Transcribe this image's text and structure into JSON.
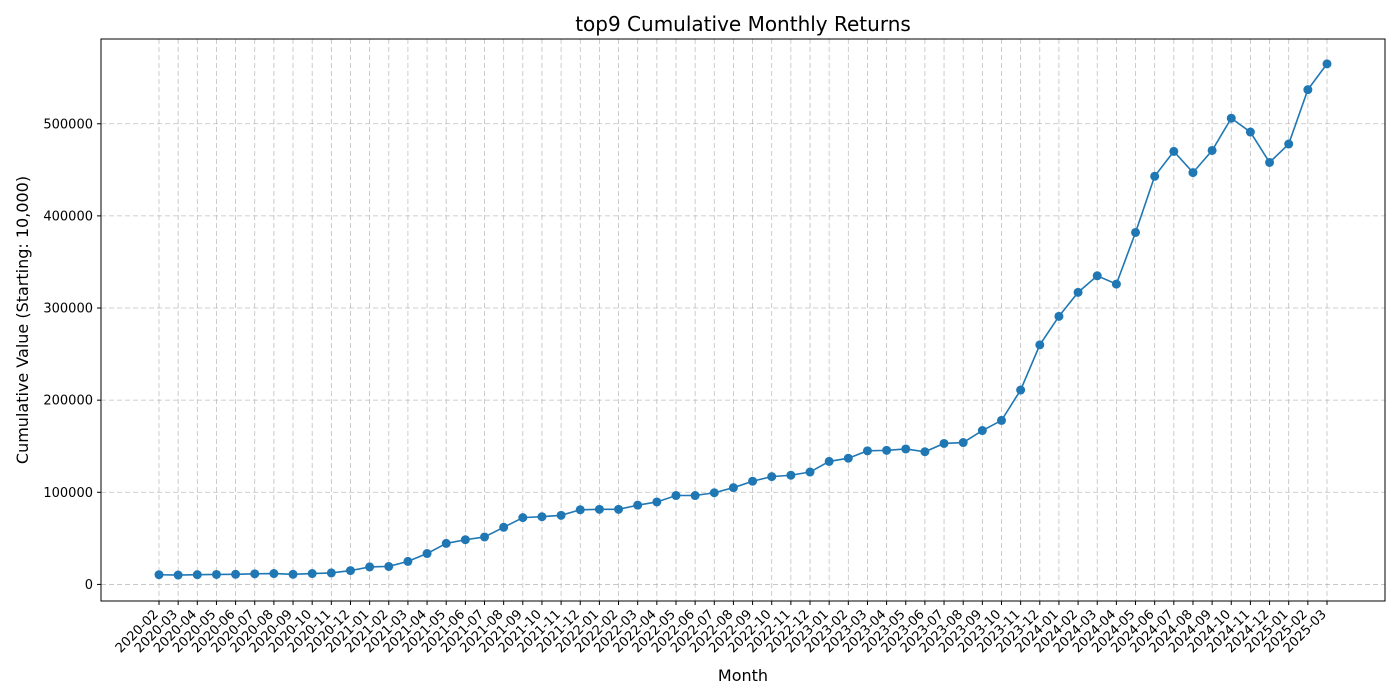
{
  "chart_data": {
    "type": "line",
    "title": "top9 Cumulative Monthly Returns",
    "xlabel": "Month",
    "ylabel": "Cumulative Value (Starting: 10,000)",
    "grid": true,
    "ylim": [
      -18000,
      592000
    ],
    "yticks": [
      0,
      100000,
      200000,
      300000,
      400000,
      500000
    ],
    "color": "#1f77b4",
    "x": [
      "2020-02",
      "2020-03",
      "2020-04",
      "2020-05",
      "2020-06",
      "2020-07",
      "2020-08",
      "2020-09",
      "2020-10",
      "2020-11",
      "2020-12",
      "2021-01",
      "2021-02",
      "2021-03",
      "2021-04",
      "2021-05",
      "2021-06",
      "2021-07",
      "2021-08",
      "2021-09",
      "2021-10",
      "2021-11",
      "2021-12",
      "2022-01",
      "2022-02",
      "2022-03",
      "2022-04",
      "2022-05",
      "2022-06",
      "2022-07",
      "2022-08",
      "2022-09",
      "2022-10",
      "2022-11",
      "2022-12",
      "2023-01",
      "2023-02",
      "2023-03",
      "2023-04",
      "2023-05",
      "2023-06",
      "2023-07",
      "2023-08",
      "2023-09",
      "2023-10",
      "2023-11",
      "2023-12",
      "2024-01",
      "2024-02",
      "2024-03",
      "2024-04",
      "2024-05",
      "2024-06",
      "2024-07",
      "2024-08",
      "2024-09",
      "2024-10",
      "2024-11",
      "2024-12",
      "2025-01",
      "2025-02",
      "2025-03"
    ],
    "y": [
      10500,
      10200,
      10600,
      10800,
      11000,
      11500,
      11800,
      11000,
      11800,
      12500,
      15000,
      19000,
      19500,
      25000,
      33500,
      44500,
      48500,
      51500,
      62000,
      72500,
      73500,
      75000,
      81000,
      81500,
      81500,
      86000,
      89500,
      96500,
      96500,
      99500,
      105000,
      112000,
      117000,
      118500,
      122000,
      133500,
      137000,
      145000,
      145500,
      147000,
      144000,
      153000,
      154000,
      167000,
      178000,
      211000,
      260000,
      291000,
      317000,
      335000,
      326000,
      382000,
      443000,
      470000,
      447000,
      471000,
      506000,
      491000,
      458000,
      478000,
      537000,
      565000
    ]
  }
}
